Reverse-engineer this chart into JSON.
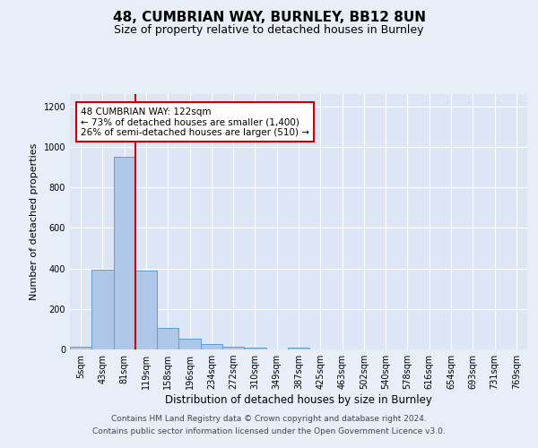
{
  "title": "48, CUMBRIAN WAY, BURNLEY, BB12 8UN",
  "subtitle": "Size of property relative to detached houses in Burnley",
  "xlabel": "Distribution of detached houses by size in Burnley",
  "ylabel": "Number of detached properties",
  "categories": [
    "5sqm",
    "43sqm",
    "81sqm",
    "119sqm",
    "158sqm",
    "196sqm",
    "234sqm",
    "272sqm",
    "310sqm",
    "349sqm",
    "387sqm",
    "425sqm",
    "463sqm",
    "502sqm",
    "540sqm",
    "578sqm",
    "616sqm",
    "654sqm",
    "693sqm",
    "731sqm",
    "769sqm"
  ],
  "values": [
    15,
    395,
    950,
    390,
    108,
    52,
    25,
    15,
    10,
    0,
    10,
    0,
    0,
    0,
    0,
    0,
    0,
    0,
    0,
    0,
    0
  ],
  "bar_color": "#aec6e8",
  "bar_edge_color": "#5a9fd4",
  "vline_x": 2.5,
  "vline_color": "#cc0000",
  "annotation_text": "48 CUMBRIAN WAY: 122sqm\n← 73% of detached houses are smaller (1,400)\n26% of semi-detached houses are larger (510) →",
  "annotation_box_color": "#ffffff",
  "annotation_box_edge_color": "#cc0000",
  "ylim": [
    0,
    1260
  ],
  "yticks": [
    0,
    200,
    400,
    600,
    800,
    1000,
    1200
  ],
  "footer1": "Contains HM Land Registry data © Crown copyright and database right 2024.",
  "footer2": "Contains public sector information licensed under the Open Government Licence v3.0.",
  "background_color": "#e8eef7",
  "plot_bg_color": "#dce6f5",
  "title_fontsize": 11,
  "subtitle_fontsize": 9,
  "ylabel_fontsize": 8,
  "xlabel_fontsize": 8.5,
  "tick_fontsize": 7,
  "annotation_fontsize": 7.5,
  "footer_fontsize": 6.5
}
